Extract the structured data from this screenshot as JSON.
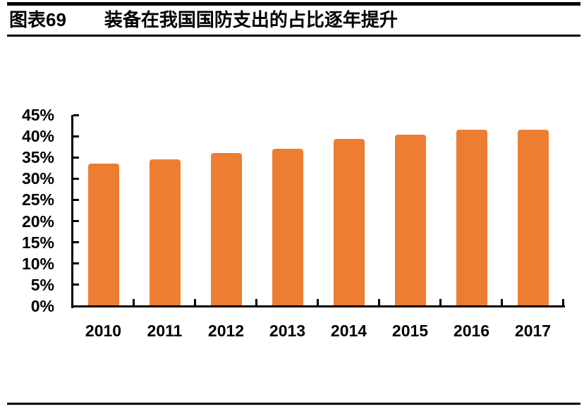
{
  "header": {
    "figure_label": "图表69",
    "title": "装备在我国国防支出的占比逐年提升"
  },
  "chart_data": {
    "type": "bar",
    "title": "装备在我国国防支出的占比逐年提升",
    "categories": [
      "2010",
      "2011",
      "2012",
      "2013",
      "2014",
      "2015",
      "2016",
      "2017"
    ],
    "values": [
      33.5,
      34.6,
      36.1,
      37.0,
      39.3,
      40.4,
      41.5,
      41.5
    ],
    "unit": "%",
    "xlabel": "",
    "ylabel": "",
    "ylim": [
      0,
      45
    ],
    "ytick_step": 5,
    "ytick_labels": [
      "0%",
      "5%",
      "10%",
      "15%",
      "20%",
      "25%",
      "30%",
      "35%",
      "40%",
      "45%"
    ],
    "bar_color": "#ED7D31",
    "axis_color": "#000000",
    "grid": false,
    "legend": "none"
  }
}
